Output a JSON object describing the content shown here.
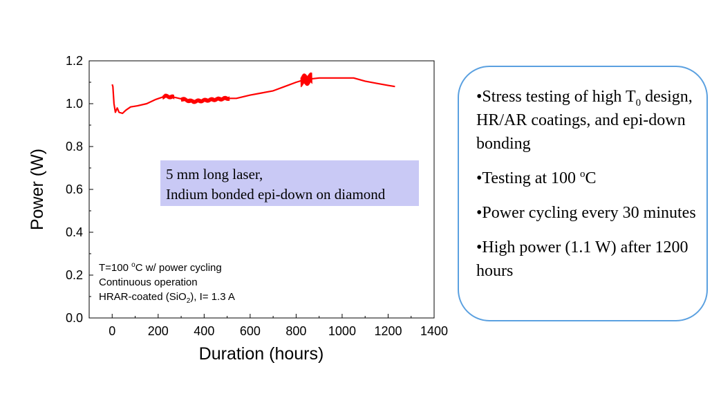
{
  "chart_data": {
    "type": "line",
    "xlabel": "Duration (hours)",
    "ylabel": "Power (W)",
    "xlim": [
      -100,
      1400
    ],
    "ylim": [
      0.0,
      1.2
    ],
    "x_ticks": [
      "0",
      "200",
      "400",
      "600",
      "800",
      "1000",
      "1200",
      "1400"
    ],
    "y_ticks": [
      "0.0",
      "0.2",
      "0.4",
      "0.6",
      "0.8",
      "1.0",
      "1.2"
    ],
    "series": [
      {
        "color": "#ff0000",
        "points": [
          [
            0,
            1.09
          ],
          [
            3,
            1.08
          ],
          [
            8,
            1.0
          ],
          [
            14,
            0.96
          ],
          [
            22,
            0.98
          ],
          [
            30,
            0.96
          ],
          [
            45,
            0.955
          ],
          [
            60,
            0.97
          ],
          [
            80,
            0.985
          ],
          [
            110,
            0.99
          ],
          [
            150,
            1.0
          ],
          [
            190,
            1.02
          ],
          [
            230,
            1.035
          ],
          [
            270,
            1.03
          ],
          [
            310,
            1.02
          ],
          [
            350,
            1.01
          ],
          [
            400,
            1.015
          ],
          [
            450,
            1.02
          ],
          [
            500,
            1.025
          ],
          [
            540,
            1.025
          ],
          [
            600,
            1.04
          ],
          [
            650,
            1.05
          ],
          [
            700,
            1.06
          ],
          [
            750,
            1.08
          ],
          [
            800,
            1.1
          ],
          [
            830,
            1.11
          ],
          [
            860,
            1.115
          ],
          [
            900,
            1.12
          ],
          [
            950,
            1.12
          ],
          [
            1000,
            1.12
          ],
          [
            1050,
            1.12
          ],
          [
            1100,
            1.105
          ],
          [
            1150,
            1.095
          ],
          [
            1200,
            1.085
          ],
          [
            1230,
            1.08
          ]
        ],
        "noisy_ranges": [
          [
            220,
            270,
            0.012
          ],
          [
            300,
            510,
            0.012
          ],
          [
            820,
            870,
            0.03
          ]
        ]
      }
    ]
  },
  "annotations": {
    "laser_line1": "5 mm long laser,",
    "laser_line2": "Indium bonded epi-down on diamond",
    "cond_line1_pre": "T=100 ",
    "cond_line1_sup": "o",
    "cond_line1_post": "C w/ power cycling",
    "cond_line2": "Continuous operation",
    "cond_line3_pre": "HRAR-coated (SiO",
    "cond_line3_sub": "2",
    "cond_line3_post": "), I= 1.3 A"
  },
  "bullets": {
    "b1_pre": "•Stress testing of high T",
    "b1_sub": "0",
    "b1_post": " design, HR/AR coatings, and epi-down bonding",
    "b2_pre": "•Testing at 100 ",
    "b2_sup": "o",
    "b2_post": "C",
    "b3": "•Power cycling every 30 minutes",
    "b4": "•High power (1.1 W) after 1200 hours"
  }
}
